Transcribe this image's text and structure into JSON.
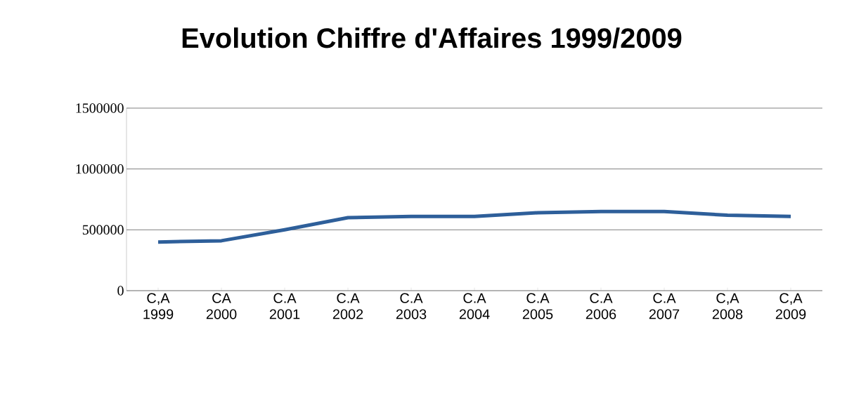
{
  "chart_data": {
    "type": "line",
    "title": "Evolution Chiffre d'Affaires 1999/2009",
    "categories": [
      "C,A 1999",
      "CA 2000",
      "C.A 2001",
      "C.A 2002",
      "C.A 2003",
      "C.A 2004",
      "C.A 2005",
      "C.A 2006",
      "C.A 2007",
      "C,A 2008",
      "C,A 2009"
    ],
    "series": [
      {
        "color": "#2e5f9a",
        "values": [
          400000,
          410000,
          500000,
          600000,
          610000,
          610000,
          640000,
          650000,
          650000,
          620000,
          610000
        ]
      }
    ],
    "ylim": [
      0,
      1500000
    ],
    "yticks": [
      0,
      500000,
      1000000,
      1500000
    ],
    "grid": "y",
    "marker": "none",
    "line_style": "solid"
  }
}
